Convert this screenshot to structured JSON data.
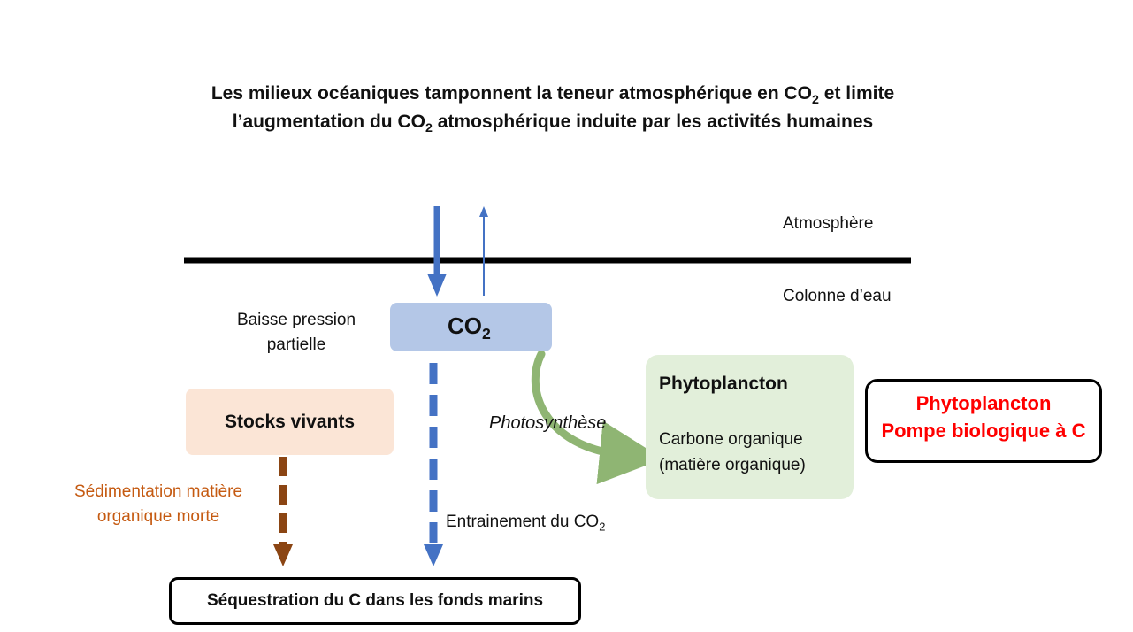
{
  "title": {
    "line1_before": "Les milieux océaniques tamponnent la teneur atmosphérique en CO",
    "line1_sub": "2",
    "line1_after": " et limite",
    "line2_before": "l’augmentation du CO",
    "line2_sub": "2",
    "line2_after": " atmosphérique induite par les activités humaines"
  },
  "layers": {
    "atmosphere": "Atmosphère",
    "water_column": "Colonne d’eau"
  },
  "pressure": {
    "line1": "Baisse pression",
    "line2": "partielle"
  },
  "co2_box": {
    "label": "CO",
    "sub": "2"
  },
  "stocks": {
    "label": "Stocks vivants"
  },
  "sedimentation": {
    "line1": "Sédimentation matière",
    "line2": "organique morte"
  },
  "photosynthesis": {
    "label": "Photosynthèse"
  },
  "phytoplankton": {
    "title": "Phytoplancton",
    "line1": "Carbone organique",
    "line2": "(matière organique)"
  },
  "pump": {
    "line1": "Phytoplancton",
    "line2": "Pompe biologique à C"
  },
  "entrainment": {
    "label": "Entrainement du CO",
    "sub": "2"
  },
  "sequestration": {
    "label": "Séquestration du C dans les fonds marins"
  },
  "colors": {
    "blue_arrow": "#4472c4",
    "brown_arrow": "#8b4513",
    "green_arrow": "#8fb573",
    "orange_text": "#c55a11",
    "red_text": "#ff0000"
  }
}
